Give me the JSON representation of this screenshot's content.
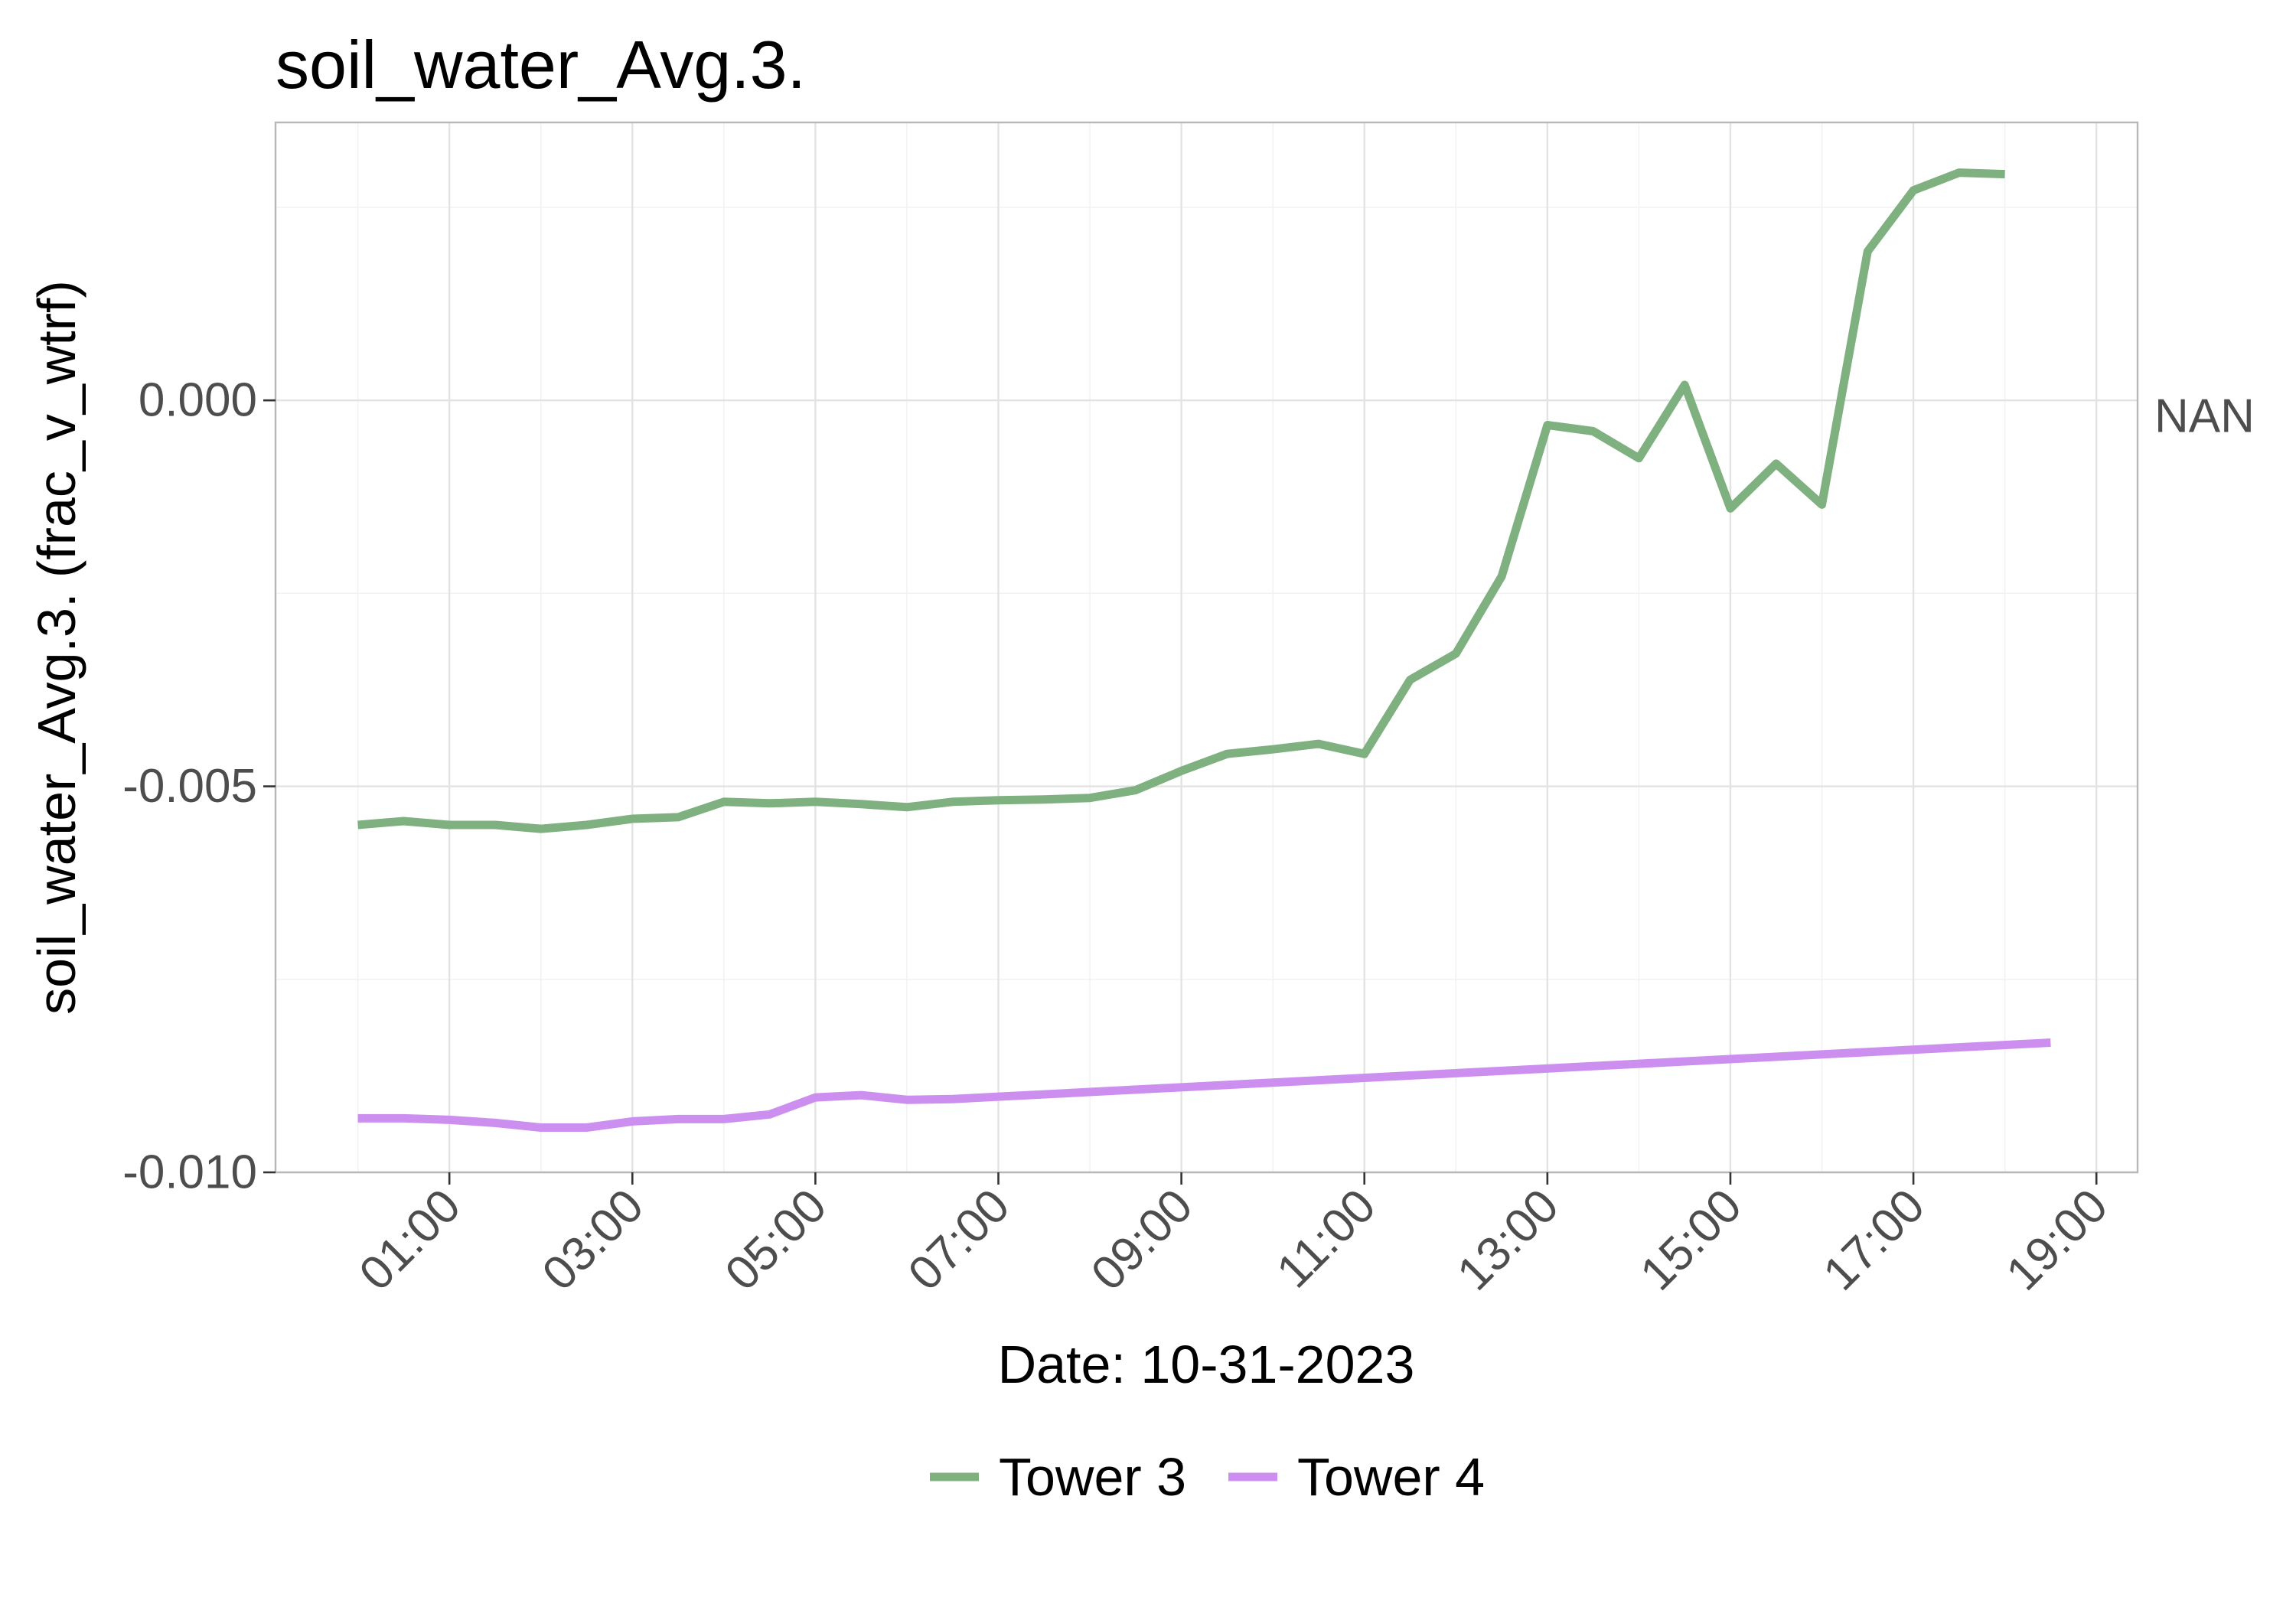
{
  "chart_data": {
    "type": "line",
    "title": "soil_water_Avg.3.",
    "xlabel": "Date: 10-31-2023",
    "ylabel": "soil_water_Avg.3. (frac_v_wtrf)",
    "secondary_y_label": "NAN",
    "x_ticks": [
      "01:00",
      "03:00",
      "05:00",
      "07:00",
      "09:00",
      "11:00",
      "13:00",
      "15:00",
      "17:00",
      "19:00"
    ],
    "x_tick_hours": [
      1,
      3,
      5,
      7,
      9,
      11,
      13,
      15,
      17,
      19
    ],
    "xlim_hours": [
      -0.9,
      19.45
    ],
    "y_ticks": [
      "0.000",
      "-0.005",
      "-0.010"
    ],
    "y_tick_values": [
      0.0,
      -0.005,
      -0.01
    ],
    "ylim": [
      -0.01,
      0.0036
    ],
    "grid": true,
    "legend_position": "bottom",
    "series": [
      {
        "name": "Tower 3",
        "color": "#7fb07f",
        "x_hours": [
          0,
          0.5,
          1,
          1.5,
          2,
          2.5,
          3,
          3.5,
          4,
          4.5,
          5,
          5.5,
          6,
          6.5,
          7,
          7.5,
          8,
          8.5,
          9,
          9.5,
          10,
          10.5,
          11,
          11.5,
          12,
          12.5,
          13,
          13.5,
          14,
          14.5,
          15,
          15.5,
          16,
          16.5,
          17,
          17.5,
          18
        ],
        "values": [
          -0.0055,
          -0.00545,
          -0.0055,
          -0.0055,
          -0.00555,
          -0.0055,
          -0.00542,
          -0.0054,
          -0.0052,
          -0.00522,
          -0.0052,
          -0.00523,
          -0.00527,
          -0.0052,
          -0.00518,
          -0.00517,
          -0.00515,
          -0.00505,
          -0.0048,
          -0.00458,
          -0.00452,
          -0.00445,
          -0.00458,
          -0.00362,
          -0.00328,
          -0.00228,
          -0.00032,
          -0.0004,
          -0.00075,
          0.0002,
          -0.0014,
          -0.00082,
          -0.00135,
          0.00193,
          0.00272,
          0.00295,
          0.00293
        ]
      },
      {
        "name": "Tower 4",
        "color": "#cc8ff0",
        "x_hours": [
          0,
          0.5,
          1,
          1.5,
          2,
          2.5,
          3,
          3.5,
          4,
          4.5,
          5,
          5.5,
          6,
          6.5,
          18.5
        ],
        "values": [
          -0.0093,
          -0.0093,
          -0.00932,
          -0.00936,
          -0.00942,
          -0.00942,
          -0.00934,
          -0.00931,
          -0.00931,
          -0.00925,
          -0.00903,
          -0.009,
          -0.00906,
          -0.00905,
          -0.00832
        ]
      }
    ]
  }
}
